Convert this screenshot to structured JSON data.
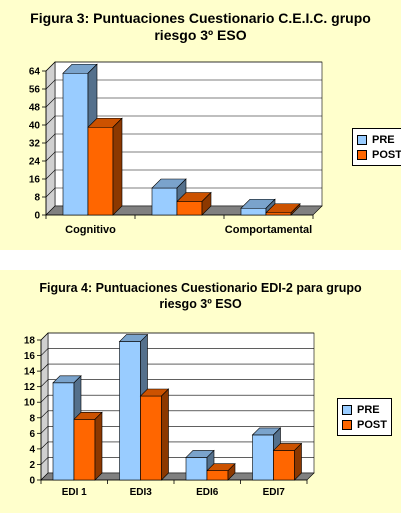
{
  "charts": [
    {
      "title_line1": "Figura 3: Puntuaciones Cuestionario C.E.I.C. grupo",
      "title_line2": "riesgo 3º ESO"
    },
    {
      "title_line1": "Figura 4: Puntuaciones Cuestionario EDI-2 para grupo",
      "title_line2": "riesgo 3º ESO"
    }
  ],
  "chart_data": [
    {
      "type": "bar",
      "title": "Figura 3: Puntuaciones Cuestionario C.E.I.C. grupo riesgo 3º ESO",
      "categories": [
        "Cognitivo",
        "",
        "Comportamental"
      ],
      "series": [
        {
          "name": "PRE",
          "values": [
            63,
            12,
            3
          ],
          "color": "#99ccff"
        },
        {
          "name": "POST",
          "values": [
            39,
            6,
            1
          ],
          "color": "#ff6600"
        }
      ],
      "ylim": [
        0,
        64
      ],
      "yticks": [
        "0",
        "8",
        "16",
        "24",
        "32",
        "40",
        "48",
        "56",
        "64"
      ],
      "grid": true,
      "legend": "right"
    },
    {
      "type": "bar",
      "title": "Figura 4: Puntuaciones Cuestionario EDI-2 para grupo riesgo 3º ESO",
      "categories": [
        "EDI 1",
        "EDI3",
        "EDI6",
        "EDI7"
      ],
      "series": [
        {
          "name": "PRE",
          "values": [
            12.5,
            17.8,
            2.9,
            5.8
          ],
          "color": "#99ccff"
        },
        {
          "name": "POST",
          "values": [
            7.8,
            10.8,
            1.2,
            3.8
          ],
          "color": "#ff6600"
        }
      ],
      "ylim": [
        0,
        18
      ],
      "yticks": [
        "0",
        "2",
        "4",
        "6",
        "8",
        "10",
        "12",
        "14",
        "16",
        "18"
      ],
      "grid": true,
      "legend": "right"
    }
  ]
}
